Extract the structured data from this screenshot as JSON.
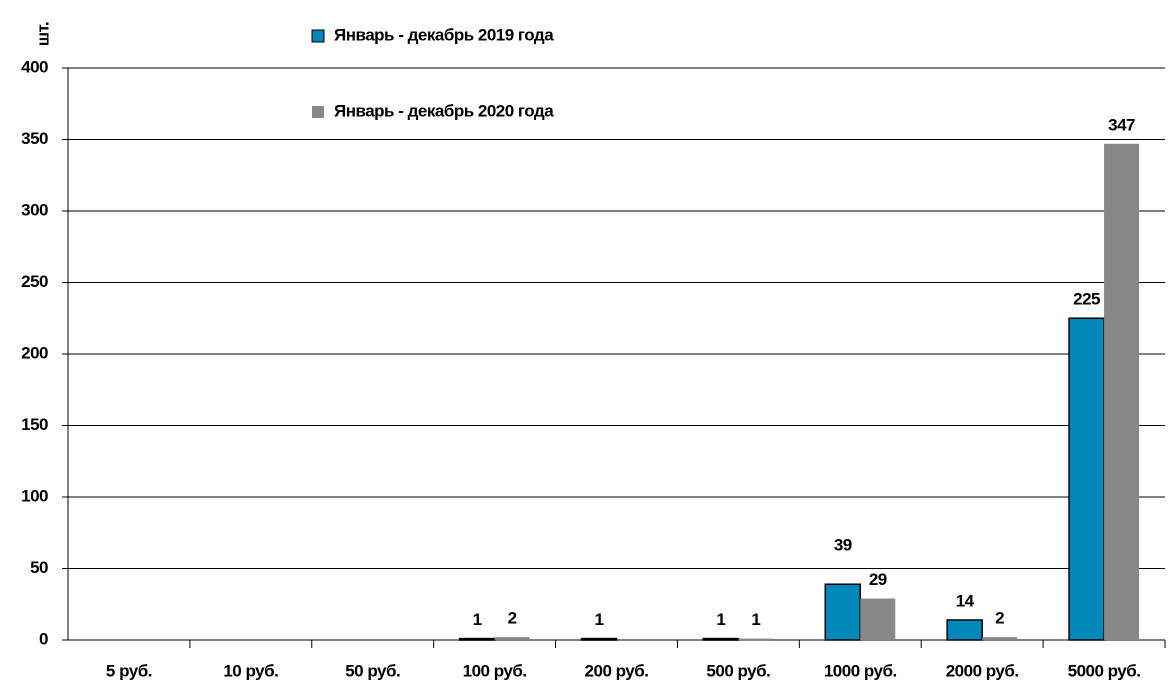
{
  "chart_data": {
    "type": "bar",
    "y_label": "шт.",
    "categories": [
      "5 руб.",
      "10 руб.",
      "50 руб.",
      "100 руб.",
      "200 руб.",
      "500 руб.",
      "1000 руб.",
      "2000 руб.",
      "5000 руб."
    ],
    "series": [
      {
        "name": "Январь - декабрь 2019 года",
        "color": "#0088bb",
        "values": [
          null,
          null,
          null,
          1,
          1,
          1,
          39,
          14,
          225
        ]
      },
      {
        "name": "Январь - декабрь 2020 года",
        "color": "#888888",
        "values": [
          null,
          null,
          null,
          2,
          null,
          1,
          29,
          2,
          347
        ]
      }
    ],
    "ylim": [
      0,
      400
    ],
    "yticks": [
      0,
      50,
      100,
      150,
      200,
      250,
      300,
      350,
      400
    ],
    "grid": true
  }
}
